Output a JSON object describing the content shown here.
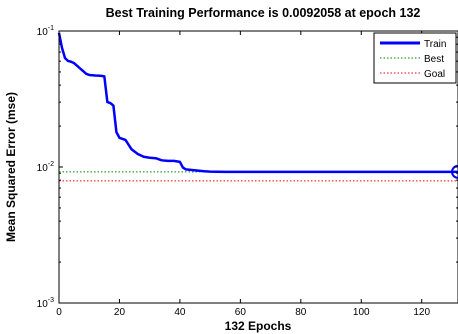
{
  "chart_data": {
    "type": "line",
    "title": "Best Training Performance is 0.0092058 at epoch 132",
    "xlabel": "132 Epochs",
    "ylabel": "Mean Squared Error  (mse)",
    "xlim": [
      0,
      132
    ],
    "ylim": [
      0.001,
      0.1
    ],
    "yscale": "log",
    "x_ticks": [
      0,
      20,
      40,
      60,
      80,
      100,
      120
    ],
    "y_ticks": [
      {
        "value": 0.1,
        "base": "10",
        "exp": "-1"
      },
      {
        "value": 0.01,
        "base": "10",
        "exp": "-2"
      },
      {
        "value": 0.001,
        "base": "10",
        "exp": "-3"
      }
    ],
    "grid": false,
    "legend_position": "top-right",
    "series": [
      {
        "name": "Train",
        "color": "#0000ff",
        "style": "solid",
        "x": [
          0,
          1,
          2,
          3,
          4,
          5,
          6,
          7,
          8,
          9,
          10,
          11,
          12,
          13,
          14,
          15,
          16,
          17,
          18,
          19,
          20,
          22,
          24,
          26,
          28,
          30,
          32,
          34,
          36,
          38,
          40,
          41,
          42,
          44,
          46,
          48,
          50,
          55,
          60,
          70,
          80,
          90,
          100,
          110,
          120,
          132
        ],
        "y": [
          0.0968,
          0.075,
          0.0632,
          0.0602,
          0.0594,
          0.058,
          0.0555,
          0.053,
          0.0507,
          0.0484,
          0.0475,
          0.0473,
          0.0471,
          0.047,
          0.0468,
          0.0464,
          0.03,
          0.0295,
          0.0283,
          0.018,
          0.0164,
          0.0158,
          0.0135,
          0.0125,
          0.0119,
          0.0117,
          0.0116,
          0.0112,
          0.0111,
          0.0111,
          0.0109,
          0.0099,
          0.0096,
          0.0095,
          0.0094,
          0.0093,
          0.00925,
          0.00921,
          0.0092058,
          0.0092058,
          0.0092058,
          0.0092058,
          0.0092058,
          0.0092058,
          0.0092058,
          0.0092058
        ]
      },
      {
        "name": "Best",
        "color": "#008000",
        "style": "dotted",
        "value": 0.0092058
      },
      {
        "name": "Goal",
        "color": "#ff0000",
        "style": "dotted",
        "value": 0.0079
      }
    ],
    "best_marker": {
      "x": 132,
      "y": 0.0092058,
      "color": "#0000ff",
      "shape": "circle"
    }
  }
}
